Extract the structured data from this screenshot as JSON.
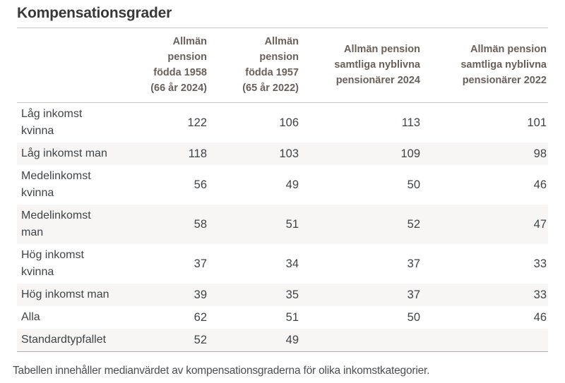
{
  "title": "Kompensationsgrader",
  "footnote": "Tabellen innehåller medianvärdet av kompensationsgraderna för olika inkomstkategorier.",
  "colors": {
    "title_text": "#383838",
    "header_text": "#6b6059",
    "body_text": "#3f4347",
    "stripe": "#f7f6f5",
    "rule_light": "#c9c5c2",
    "rule_dark": "#aeaaa7"
  },
  "chart_data": {
    "type": "table",
    "title": "Kompensationsgrader",
    "columns": [
      "Allmän\npension\nfödda 1958\n(66 år 2024)",
      "Allmän\npension\nfödda 1957\n(65 år 2022)",
      "Allmän pension\nsamtliga nyblivna\npensionärer 2024",
      "Allmän pension\nsamtliga nyblivna\npensionärer 2022"
    ],
    "rows": [
      {
        "label": "Låg inkomst\nkvinna",
        "values": [
          122,
          106,
          113,
          101
        ]
      },
      {
        "label": "Låg inkomst man",
        "values": [
          118,
          103,
          109,
          98
        ]
      },
      {
        "label": "Medelinkomst\nkvinna",
        "values": [
          56,
          49,
          50,
          46
        ]
      },
      {
        "label": "Medelinkomst\nman",
        "values": [
          58,
          51,
          52,
          47
        ]
      },
      {
        "label": "Hög inkomst\nkvinna",
        "values": [
          37,
          34,
          37,
          33
        ]
      },
      {
        "label": "Hög inkomst man",
        "values": [
          39,
          35,
          37,
          33
        ]
      },
      {
        "label": "Alla",
        "values": [
          62,
          51,
          50,
          46
        ]
      },
      {
        "label": "Standardtypfallet",
        "values": [
          52,
          49,
          null,
          null
        ]
      }
    ],
    "footnote": "Tabellen innehåller medianvärdet av kompensationsgraderna för olika inkomstkategorier.",
    "layout": {
      "striped_rows": "even",
      "value_alignment": "right",
      "header_alignment": "right"
    }
  }
}
